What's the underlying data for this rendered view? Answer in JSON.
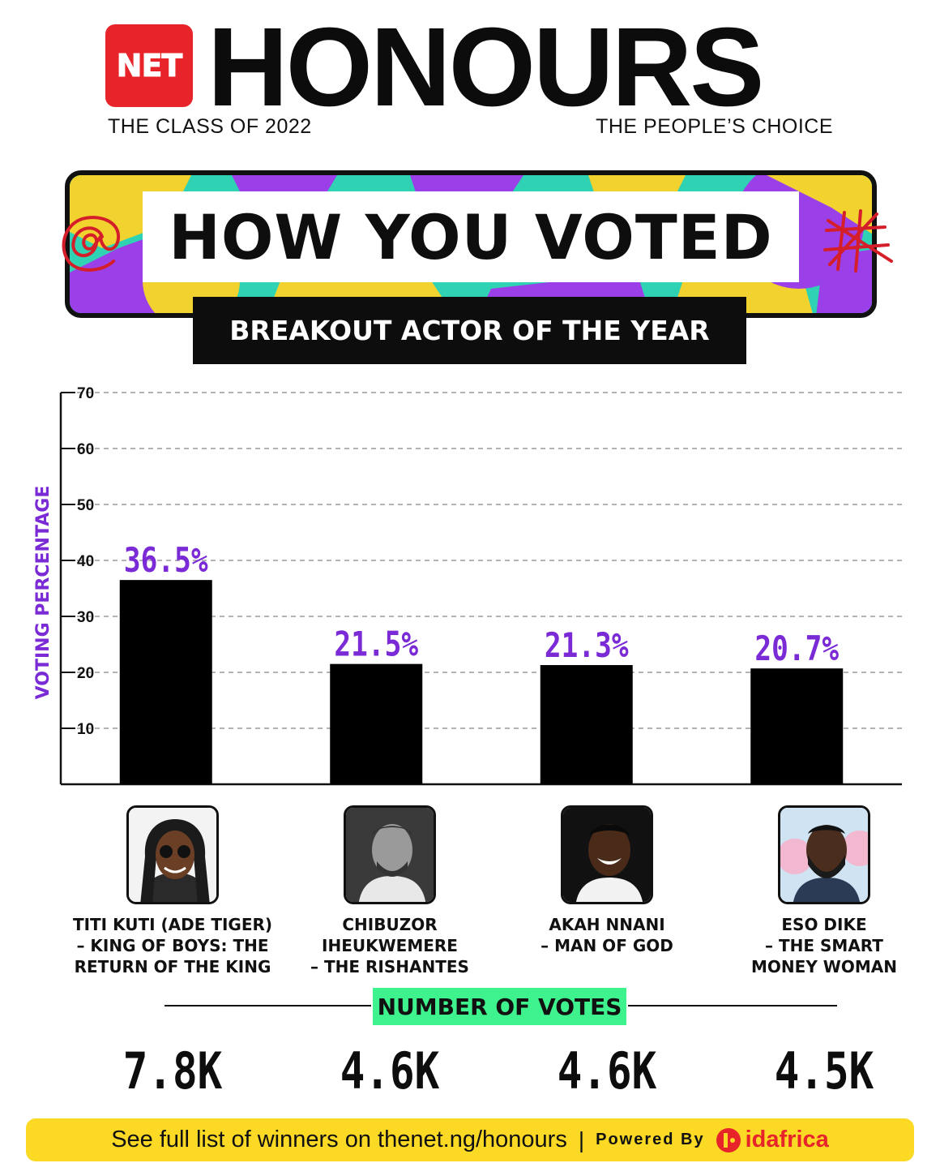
{
  "header": {
    "logo_text": "NET",
    "title": "HONOURS",
    "subtitle_left": "THE CLASS OF 2022",
    "subtitle_right": "THE PEOPLE’S CHOICE"
  },
  "banner": {
    "headline": "HOW YOU VOTED",
    "category": "BREAKOUT ACTOR OF THE YEAR"
  },
  "chart_data": {
    "type": "bar",
    "ylabel": "VOTING PERCENTAGE",
    "ylim": [
      0,
      70
    ],
    "yticks": [
      10,
      20,
      30,
      40,
      50,
      60,
      70
    ],
    "grid": true,
    "categories": [
      "TITI KUTI (ADE TIGER) - KING OF BOYS: THE RETURN OF THE KING",
      "CHIBUZOR IHEUKWEMERE - THE RISHANTES",
      "AKAH NNANI - MAN OF GOD",
      "ESO DIKE - THE SMART MONEY WOMAN"
    ],
    "values": [
      36.5,
      21.5,
      21.3,
      20.7
    ],
    "value_labels": [
      "36.5%",
      "21.5%",
      "21.3%",
      "20.7%"
    ],
    "bar_color": "#000000",
    "label_color": "#7a2bd6"
  },
  "nominees": [
    {
      "label": "TITI KUTI (ADE TIGER)\n– KING OF BOYS: THE\nRETURN OF THE KING",
      "votes": "7.8K"
    },
    {
      "label": "CHIBUZOR\nIHEUKWEMERE\n– THE RISHANTES",
      "votes": "4.6K"
    },
    {
      "label": "AKAH NNANI\n– MAN OF GOD",
      "votes": "4.6K"
    },
    {
      "label": "ESO DIKE\n– THE SMART\nMONEY WOMAN",
      "votes": "4.5K"
    }
  ],
  "votes_title": "NUMBER OF VOTES",
  "footer": {
    "text": "See full list of winners on thenet.ng/honours",
    "separator": "|",
    "powered_by": "Powered By",
    "partner": "idafrica"
  },
  "colors": {
    "brand_red": "#e8242b",
    "accent_purple": "#7a2bd6",
    "votes_green": "#3ef28e",
    "footer_yellow": "#fbd925"
  }
}
